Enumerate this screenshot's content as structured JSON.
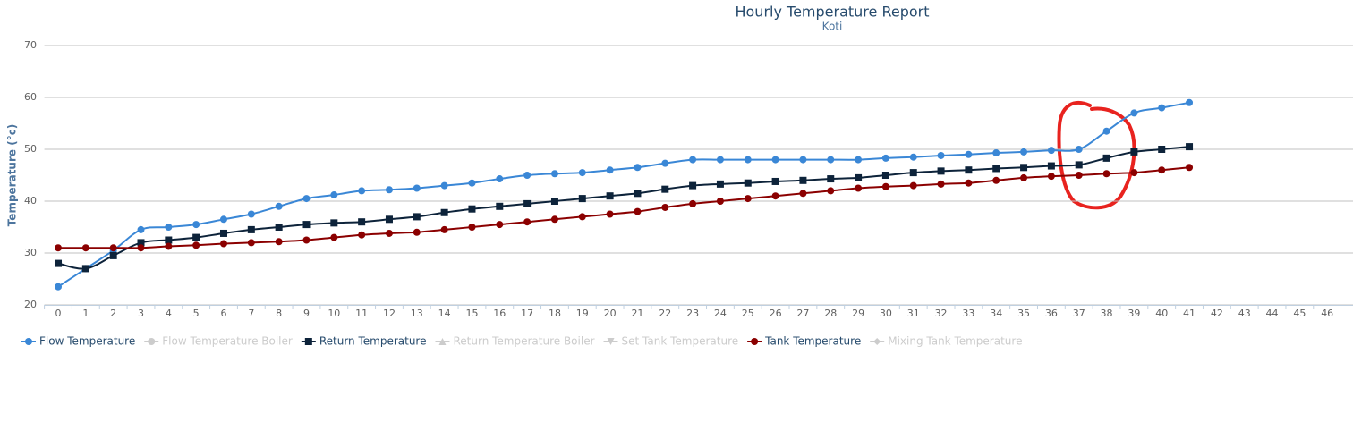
{
  "chart_data": {
    "type": "line",
    "title": "Hourly Temperature Report",
    "subtitle": "Koti",
    "y_label": "Temperature (°c)",
    "categories": [
      "0",
      "1",
      "2",
      "3",
      "4",
      "5",
      "6",
      "7",
      "8",
      "9",
      "10",
      "11",
      "12",
      "13",
      "14",
      "15",
      "16",
      "17",
      "18",
      "19",
      "20",
      "21",
      "22",
      "23",
      "24",
      "25",
      "26",
      "27",
      "28",
      "29",
      "30",
      "31",
      "32",
      "33",
      "34",
      "35",
      "36",
      "37",
      "38",
      "39",
      "40",
      "41",
      "42",
      "43",
      "44",
      "45",
      "46"
    ],
    "ylim": [
      20,
      70
    ],
    "yticks": [
      20,
      30,
      40,
      50,
      60,
      70
    ],
    "grid": true,
    "legend": "bottom",
    "series": [
      {
        "name": "Flow Temperature",
        "color": "#3a87d6",
        "marker": "circle",
        "visible": true,
        "values": [
          23.5,
          27,
          30.5,
          34.5,
          35,
          35.5,
          36.5,
          37.5,
          39,
          40.5,
          41.2,
          42,
          42.2,
          42.5,
          43,
          43.5,
          44.3,
          45,
          45.3,
          45.5,
          46,
          46.5,
          47.3,
          48,
          48,
          48,
          48,
          48,
          48,
          48,
          48.3,
          48.5,
          48.8,
          49,
          49.3,
          49.5,
          49.8,
          50,
          53.5,
          57,
          58,
          59,
          null,
          null,
          null,
          null,
          null
        ]
      },
      {
        "name": "Flow Temperature Boiler",
        "color": "#cccccc",
        "marker": "circle",
        "visible": false,
        "values": [
          null,
          null,
          null,
          null,
          null,
          null,
          null,
          null,
          null,
          null,
          null,
          null,
          null,
          null,
          null,
          null,
          null,
          null,
          null,
          null,
          null,
          null,
          null,
          null,
          null,
          null,
          null,
          null,
          null,
          null,
          null,
          null,
          null,
          null,
          null,
          null,
          null,
          null,
          null,
          null,
          null,
          null,
          null,
          null,
          null,
          null,
          null
        ]
      },
      {
        "name": "Return Temperature",
        "color": "#0d233a",
        "marker": "square",
        "visible": true,
        "values": [
          28,
          27,
          29.5,
          32,
          32.5,
          33,
          33.8,
          34.5,
          35,
          35.5,
          35.8,
          36,
          36.5,
          37,
          37.8,
          38.5,
          39,
          39.5,
          40,
          40.5,
          41,
          41.5,
          42.3,
          43,
          43.3,
          43.5,
          43.8,
          44,
          44.3,
          44.5,
          45,
          45.5,
          45.8,
          46,
          46.3,
          46.5,
          46.8,
          47,
          48.3,
          49.5,
          50,
          50.5,
          null,
          null,
          null,
          null,
          null
        ]
      },
      {
        "name": "Return Temperature Boiler",
        "color": "#cccccc",
        "marker": "triangle",
        "visible": false,
        "values": [
          null,
          null,
          null,
          null,
          null,
          null,
          null,
          null,
          null,
          null,
          null,
          null,
          null,
          null,
          null,
          null,
          null,
          null,
          null,
          null,
          null,
          null,
          null,
          null,
          null,
          null,
          null,
          null,
          null,
          null,
          null,
          null,
          null,
          null,
          null,
          null,
          null,
          null,
          null,
          null,
          null,
          null,
          null,
          null,
          null,
          null,
          null
        ]
      },
      {
        "name": "Set Tank Temperature",
        "color": "#cccccc",
        "marker": "triangle-down",
        "visible": false,
        "values": [
          null,
          null,
          null,
          null,
          null,
          null,
          null,
          null,
          null,
          null,
          null,
          null,
          null,
          null,
          null,
          null,
          null,
          null,
          null,
          null,
          null,
          null,
          null,
          null,
          null,
          null,
          null,
          null,
          null,
          null,
          null,
          null,
          null,
          null,
          null,
          null,
          null,
          null,
          null,
          null,
          null,
          null,
          null,
          null,
          null,
          null,
          null
        ]
      },
      {
        "name": "Tank Temperature",
        "color": "#8b0000",
        "marker": "circle",
        "visible": true,
        "values": [
          31,
          31,
          31,
          31,
          31.3,
          31.5,
          31.8,
          32,
          32.2,
          32.5,
          33,
          33.5,
          33.8,
          34,
          34.5,
          35,
          35.5,
          36,
          36.5,
          37,
          37.5,
          38,
          38.8,
          39.5,
          40,
          40.5,
          41,
          41.5,
          42,
          42.5,
          42.8,
          43,
          43.3,
          43.5,
          44,
          44.5,
          44.8,
          45,
          45.3,
          45.5,
          46,
          46.5,
          null,
          null,
          null,
          null,
          null
        ]
      },
      {
        "name": "Mixing Tank Temperature",
        "color": "#cccccc",
        "marker": "diamond",
        "visible": false,
        "values": [
          null,
          null,
          null,
          null,
          null,
          null,
          null,
          null,
          null,
          null,
          null,
          null,
          null,
          null,
          null,
          null,
          null,
          null,
          null,
          null,
          null,
          null,
          null,
          null,
          null,
          null,
          null,
          null,
          null,
          null,
          null,
          null,
          null,
          null,
          null,
          null,
          null,
          null,
          null,
          null,
          null,
          null,
          null,
          null,
          null,
          null,
          null
        ]
      }
    ]
  }
}
